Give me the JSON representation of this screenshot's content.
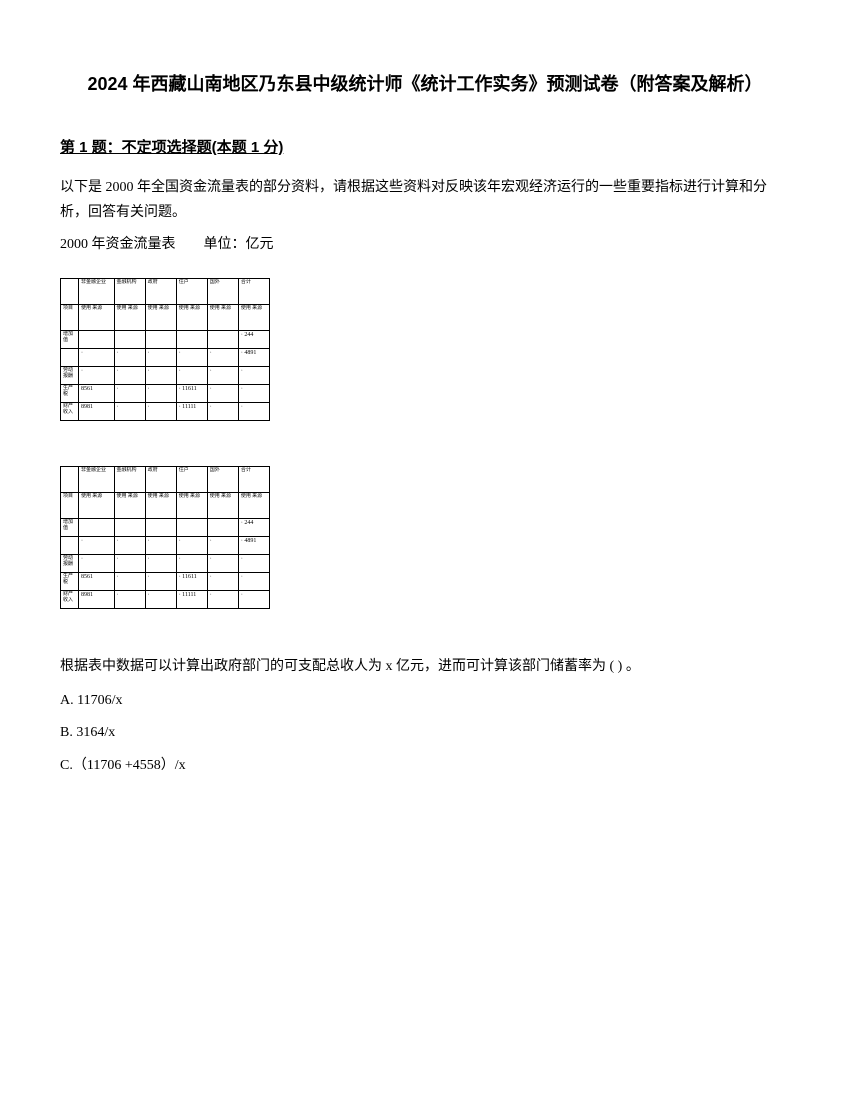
{
  "title": "2024 年西藏山南地区乃东县中级统计师《统计工作实务》预测试卷（附答案及解析）",
  "question": {
    "header": "第 1 题：不定项选择题(本题 1 分)",
    "body1": "以下是 2000 年全国资金流量表的部分资料，请根据这些资料对反映该年宏观经济运行的一些重要指标进行计算和分析，回答有关问题。",
    "tableCaption": "2000 年资金流量表  单位：亿元",
    "follow": "根据表中数据可以计算出政府部门的可支配总收人为 x 亿元，进而可计算该部门储蓄率为 ( ) 。",
    "options": {
      "A": "A. 11706/x",
      "B": "B. 3164/x",
      "C": "C.（11706 +4558）/x"
    }
  },
  "table1": {
    "type": "table",
    "colors": {
      "border": "#000000",
      "background": "#ffffff",
      "text": "#000000"
    },
    "fontsize": 6,
    "headerRow": [
      "",
      "非金融企业",
      "金融机构",
      "政府",
      "住户",
      "国外",
      "合计"
    ],
    "subHeaderRow": [
      "项目",
      "使用 来源",
      "使用 来源",
      "使用 来源",
      "使用 来源",
      "使用 来源",
      "使用 来源"
    ],
    "rows": [
      {
        "label": "增加值",
        "cells": [
          "",
          "",
          "",
          "",
          "",
          "· 244"
        ]
      },
      {
        "label": "",
        "cells": [
          "·",
          "·",
          "·",
          "·",
          "·",
          "· 4891"
        ]
      },
      {
        "label": "劳动报酬",
        "cells": [
          "·",
          "·",
          "·",
          "·",
          "·",
          "·"
        ]
      },
      {
        "label": "生产税",
        "cells": [
          "8561",
          "·",
          "·",
          "· 11611",
          "·",
          "·"
        ]
      },
      {
        "label": "财产收入",
        "cells": [
          "8981",
          "·",
          "·",
          "· 11111",
          "·",
          "·"
        ]
      }
    ]
  },
  "table2": {
    "type": "table",
    "colors": {
      "border": "#000000",
      "background": "#ffffff",
      "text": "#000000"
    },
    "fontsize": 6,
    "headerRow": [
      "",
      "非金融企业",
      "金融机构",
      "政府",
      "住户",
      "国外",
      "合计"
    ],
    "subHeaderRow": [
      "项目",
      "使用 来源",
      "使用 来源",
      "使用 来源",
      "使用 来源",
      "使用 来源",
      "使用 来源"
    ],
    "rows": [
      {
        "label": "增加值",
        "cells": [
          "",
          "",
          "",
          "",
          "",
          "· 244"
        ]
      },
      {
        "label": "",
        "cells": [
          "·",
          "·",
          "·",
          "·",
          "·",
          "· 4891"
        ]
      },
      {
        "label": "劳动报酬",
        "cells": [
          "·",
          "·",
          "·",
          "·",
          "·",
          "·"
        ]
      },
      {
        "label": "生产税",
        "cells": [
          "8561",
          "·",
          "·",
          "· 11611",
          "·",
          "·"
        ]
      },
      {
        "label": "财产收入",
        "cells": [
          "8981",
          "·",
          "·",
          "· 11111",
          "·",
          "·"
        ]
      }
    ]
  }
}
